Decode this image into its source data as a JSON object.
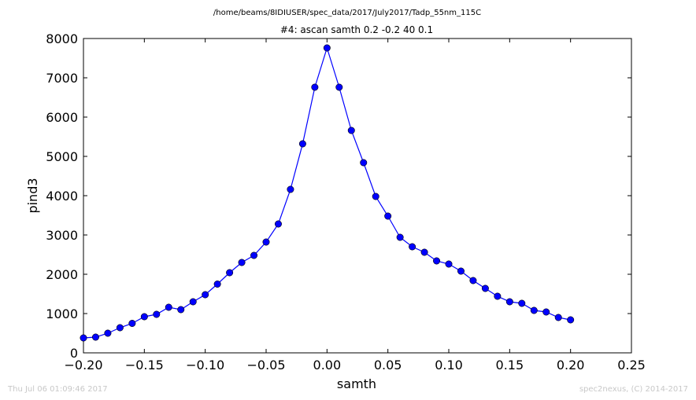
{
  "page": {
    "path_title": "/home/beams/8IDIUSER/spec_data/2017/July2017/Tadp_55nm_115C",
    "timestamp": "Thu Jul 06 01:09:46 2017",
    "credit": "spec2nexus, (C) 2014-2017"
  },
  "chart_data": {
    "type": "line",
    "title": "#4: ascan  samth 0.2 -0.2  40 0.1",
    "xlabel": "samth",
    "ylabel": "pind3",
    "xlim": [
      -0.2,
      0.25
    ],
    "ylim": [
      0,
      8000
    ],
    "xticks": [
      -0.2,
      -0.15,
      -0.1,
      -0.05,
      0.0,
      0.05,
      0.1,
      0.15,
      0.2,
      0.25
    ],
    "xtick_labels": [
      "−0.20",
      "−0.15",
      "−0.10",
      "−0.05",
      "0.00",
      "0.05",
      "0.10",
      "0.15",
      "0.20",
      "0.25"
    ],
    "yticks": [
      0,
      1000,
      2000,
      3000,
      4000,
      5000,
      6000,
      7000,
      8000
    ],
    "ytick_labels": [
      "0",
      "1000",
      "2000",
      "3000",
      "4000",
      "5000",
      "6000",
      "7000",
      "8000"
    ],
    "grid": false,
    "legend": "none",
    "color": "#0000ff",
    "marker": "circle",
    "x": [
      -0.2,
      -0.19,
      -0.18,
      -0.17,
      -0.16,
      -0.15,
      -0.14,
      -0.13,
      -0.12,
      -0.11,
      -0.1,
      -0.09,
      -0.08,
      -0.07,
      -0.06,
      -0.05,
      -0.04,
      -0.03,
      -0.02,
      -0.01,
      0.0,
      0.01,
      0.02,
      0.03,
      0.04,
      0.05,
      0.06,
      0.07,
      0.08,
      0.09,
      0.1,
      0.11,
      0.12,
      0.13,
      0.14,
      0.15,
      0.16,
      0.17,
      0.18,
      0.19,
      0.2
    ],
    "y": [
      380,
      400,
      500,
      640,
      750,
      920,
      980,
      1160,
      1100,
      1300,
      1480,
      1750,
      2040,
      2300,
      2480,
      2820,
      3280,
      4160,
      5320,
      6760,
      7760,
      6760,
      5660,
      4840,
      3980,
      3480,
      2940,
      2700,
      2560,
      2340,
      2260,
      2080,
      1840,
      1640,
      1440,
      1300,
      1260,
      1080,
      1040,
      900,
      840
    ]
  }
}
